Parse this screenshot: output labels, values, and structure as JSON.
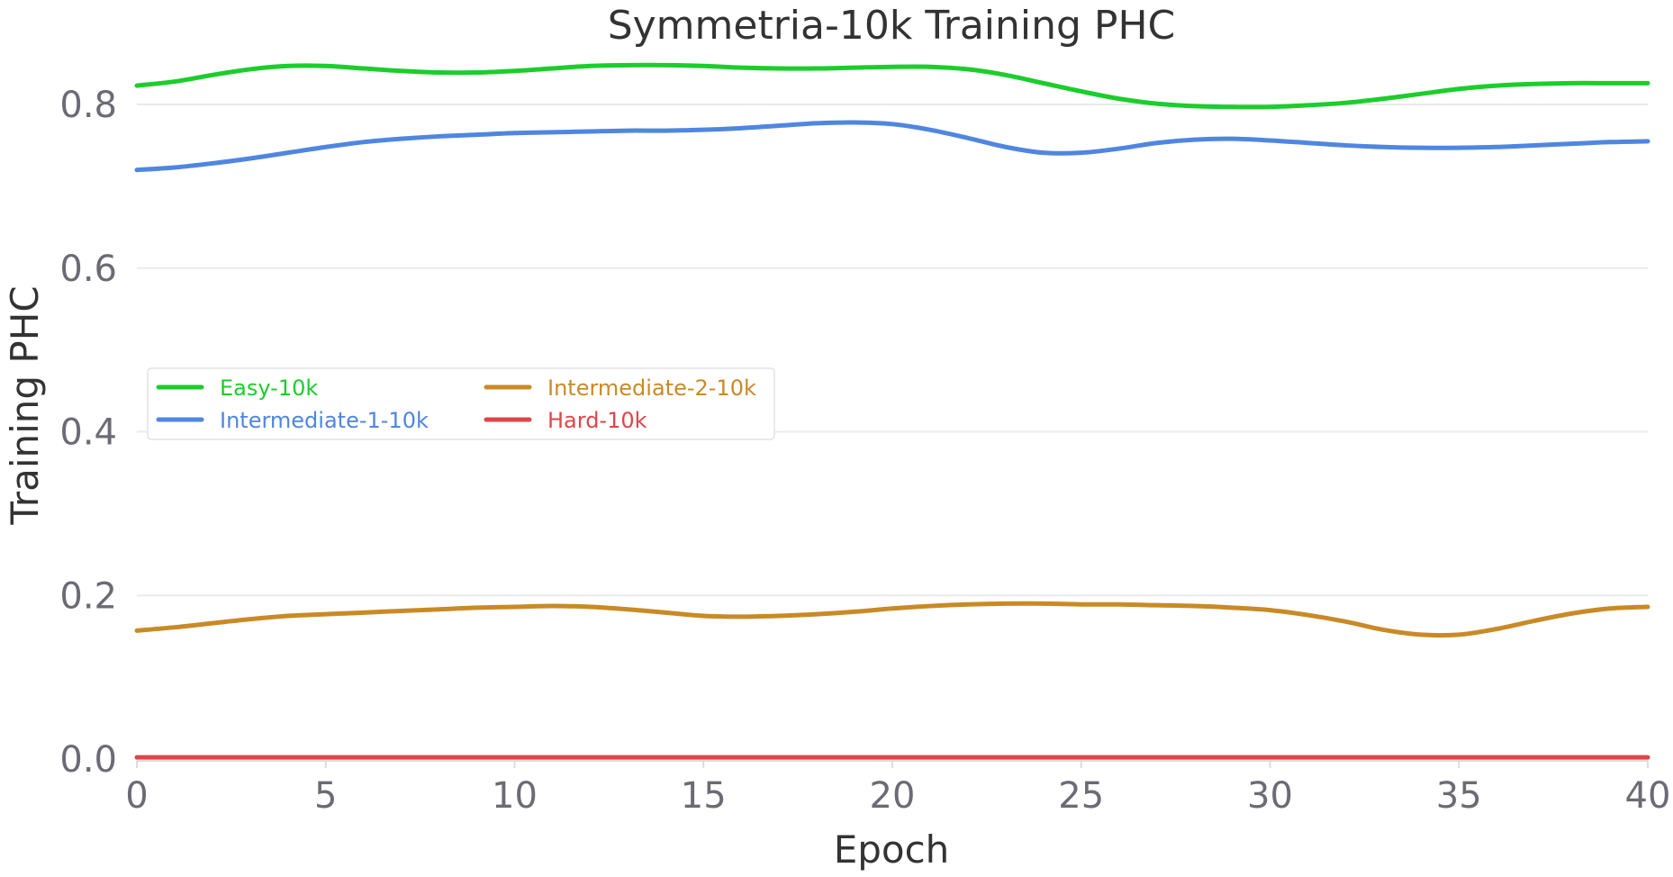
{
  "chart_data": {
    "type": "line",
    "title": "Symmetria-10k Training PHC",
    "xlabel": "Epoch",
    "ylabel": "Training PHC",
    "xlim": [
      0,
      40
    ],
    "ylim": [
      0,
      0.85
    ],
    "xticks": [
      0,
      5,
      10,
      15,
      20,
      25,
      30,
      35,
      40
    ],
    "xtick_labels": [
      "0",
      "5",
      "10",
      "15",
      "20",
      "25",
      "30",
      "35",
      "40"
    ],
    "yticks": [
      0.0,
      0.2,
      0.4,
      0.6,
      0.8
    ],
    "ytick_labels": [
      "0.0",
      "0.2",
      "0.4",
      "0.6",
      "0.8"
    ],
    "grid": "horizontal",
    "legend_position": "center-left",
    "x": [
      0,
      1,
      2,
      3,
      4,
      5,
      6,
      7,
      8,
      9,
      10,
      11,
      12,
      13,
      14,
      15,
      16,
      17,
      18,
      19,
      20,
      21,
      22,
      23,
      24,
      25,
      26,
      27,
      28,
      29,
      30,
      31,
      32,
      33,
      34,
      35,
      36,
      37,
      38,
      39,
      40
    ],
    "series": [
      {
        "name": "Easy-10k",
        "color": "#1ccd2b",
        "values": [
          0.823,
          0.828,
          0.836,
          0.843,
          0.847,
          0.847,
          0.844,
          0.841,
          0.839,
          0.839,
          0.841,
          0.844,
          0.847,
          0.848,
          0.848,
          0.847,
          0.845,
          0.844,
          0.844,
          0.845,
          0.846,
          0.846,
          0.843,
          0.836,
          0.826,
          0.816,
          0.807,
          0.801,
          0.798,
          0.797,
          0.797,
          0.799,
          0.802,
          0.807,
          0.813,
          0.819,
          0.823,
          0.825,
          0.826,
          0.826,
          0.826
        ]
      },
      {
        "name": "Intermediate-1-10k",
        "color": "#4f86e0",
        "values": [
          0.72,
          0.723,
          0.728,
          0.734,
          0.741,
          0.748,
          0.754,
          0.758,
          0.761,
          0.763,
          0.765,
          0.766,
          0.767,
          0.768,
          0.768,
          0.769,
          0.771,
          0.774,
          0.777,
          0.778,
          0.776,
          0.769,
          0.759,
          0.748,
          0.741,
          0.741,
          0.746,
          0.753,
          0.757,
          0.758,
          0.756,
          0.753,
          0.75,
          0.748,
          0.747,
          0.747,
          0.748,
          0.75,
          0.752,
          0.754,
          0.755
        ]
      },
      {
        "name": "Intermediate-2-10k",
        "color": "#c98a26",
        "values": [
          0.157,
          0.161,
          0.166,
          0.171,
          0.175,
          0.177,
          0.179,
          0.181,
          0.183,
          0.185,
          0.186,
          0.187,
          0.186,
          0.183,
          0.179,
          0.175,
          0.174,
          0.175,
          0.177,
          0.18,
          0.184,
          0.187,
          0.189,
          0.19,
          0.19,
          0.189,
          0.189,
          0.188,
          0.187,
          0.185,
          0.182,
          0.176,
          0.168,
          0.158,
          0.152,
          0.152,
          0.159,
          0.169,
          0.178,
          0.184,
          0.186
        ]
      },
      {
        "name": "Hard-10k",
        "color": "#df4549",
        "values": [
          0.002,
          0.002,
          0.002,
          0.002,
          0.002,
          0.002,
          0.002,
          0.002,
          0.002,
          0.002,
          0.002,
          0.002,
          0.002,
          0.002,
          0.002,
          0.002,
          0.002,
          0.002,
          0.002,
          0.002,
          0.002,
          0.002,
          0.002,
          0.002,
          0.002,
          0.002,
          0.002,
          0.002,
          0.002,
          0.002,
          0.002,
          0.002,
          0.002,
          0.002,
          0.002,
          0.002,
          0.002,
          0.002,
          0.002,
          0.002,
          0.002
        ]
      }
    ]
  }
}
